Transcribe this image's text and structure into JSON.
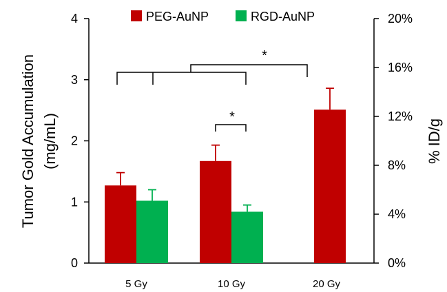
{
  "chart_data": {
    "type": "bar",
    "categories": [
      "5 Gy",
      "10 Gy",
      "20 Gy"
    ],
    "series": [
      {
        "name": "PEG-AuNP",
        "color": "#c00000",
        "values": [
          1.27,
          1.67,
          2.51
        ],
        "errors": [
          0.21,
          0.26,
          0.35
        ]
      },
      {
        "name": "RGD-AuNP",
        "color": "#00b050",
        "values": [
          1.02,
          0.84,
          null
        ],
        "errors": [
          0.18,
          0.11,
          null
        ]
      }
    ],
    "ylabel_line1": "Tumor Gold Accumulation",
    "ylabel_line2": "(mg/mL)",
    "y2label": "% ID/g",
    "ylim": [
      0,
      4
    ],
    "yticks": [
      "0",
      "1",
      "2",
      "3",
      "4"
    ],
    "y2lim": [
      0,
      20
    ],
    "y2ticks": [
      "0%",
      "4%",
      "8%",
      "12%",
      "16%",
      "20%"
    ],
    "legend": "top",
    "grid": false,
    "significance": [
      "*",
      "*"
    ]
  }
}
